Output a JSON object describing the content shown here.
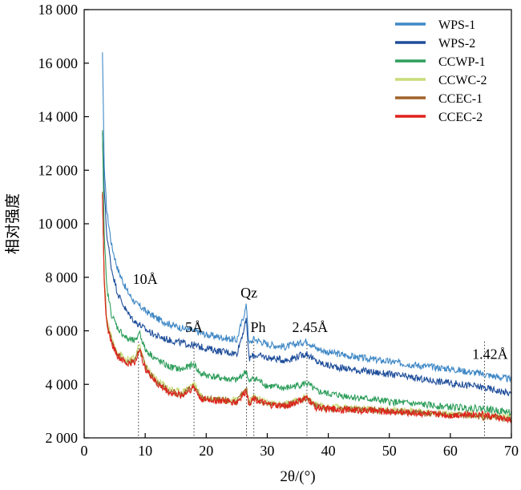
{
  "chart_data": {
    "type": "line",
    "title": "",
    "xlabel": "2θ/(°)",
    "ylabel": "相对强度",
    "xlim": [
      0,
      70
    ],
    "ylim": [
      2000,
      18000
    ],
    "x_ticks": [
      0,
      10,
      20,
      30,
      40,
      50,
      60,
      70
    ],
    "x_tick_labels": [
      "0",
      "10",
      "20",
      "30",
      "40",
      "50",
      "60",
      "70"
    ],
    "y_ticks": [
      2000,
      4000,
      6000,
      8000,
      10000,
      12000,
      14000,
      16000,
      18000
    ],
    "y_tick_labels": [
      "2 000",
      "4 000",
      "6 000",
      "8 000",
      "10 000",
      "12 000",
      "14 000",
      "16 000",
      "18 000"
    ],
    "grid": false,
    "legend_position": "top-right",
    "series": [
      {
        "name": "WPS-1",
        "color": "#3f88c5",
        "points": [
          [
            3.0,
            16400
          ],
          [
            3.3,
            12000
          ],
          [
            3.7,
            10500
          ],
          [
            4.5,
            9200
          ],
          [
            5.5,
            8300
          ],
          [
            7,
            7500
          ],
          [
            8.5,
            7000
          ],
          [
            9,
            6950
          ],
          [
            10,
            6750
          ],
          [
            12,
            6450
          ],
          [
            14,
            6250
          ],
          [
            16,
            6100
          ],
          [
            18,
            6000
          ],
          [
            20,
            5850
          ],
          [
            22,
            5780
          ],
          [
            25,
            5650
          ],
          [
            26.6,
            6950
          ],
          [
            27,
            5500
          ],
          [
            27.8,
            5700
          ],
          [
            30,
            5500
          ],
          [
            33,
            5400
          ],
          [
            36.5,
            5620
          ],
          [
            38,
            5350
          ],
          [
            40,
            5200
          ],
          [
            45,
            5000
          ],
          [
            50,
            4850
          ],
          [
            55,
            4700
          ],
          [
            60,
            4580
          ],
          [
            65,
            4400
          ],
          [
            70,
            4180
          ]
        ]
      },
      {
        "name": "WPS-2",
        "color": "#1f4e9a",
        "points": [
          [
            3.0,
            13400
          ],
          [
            3.3,
            11200
          ],
          [
            3.7,
            9600
          ],
          [
            4.5,
            8300
          ],
          [
            5.5,
            7400
          ],
          [
            7,
            6700
          ],
          [
            8.5,
            6300
          ],
          [
            9,
            6250
          ],
          [
            10,
            6050
          ],
          [
            12,
            5800
          ],
          [
            14,
            5650
          ],
          [
            16,
            5550
          ],
          [
            18,
            5450
          ],
          [
            20,
            5350
          ],
          [
            22,
            5250
          ],
          [
            25,
            5150
          ],
          [
            26.6,
            6400
          ],
          [
            27,
            4950
          ],
          [
            27.8,
            5100
          ],
          [
            30,
            5000
          ],
          [
            33,
            4900
          ],
          [
            36.5,
            5150
          ],
          [
            38,
            4850
          ],
          [
            40,
            4700
          ],
          [
            45,
            4520
          ],
          [
            50,
            4380
          ],
          [
            55,
            4200
          ],
          [
            60,
            4050
          ],
          [
            65,
            3900
          ],
          [
            70,
            3650
          ]
        ]
      },
      {
        "name": "CCWP-1",
        "color": "#2e9e5b",
        "points": [
          [
            3.0,
            13500
          ],
          [
            3.3,
            9500
          ],
          [
            3.7,
            7600
          ],
          [
            4.5,
            6600
          ],
          [
            5.5,
            6100
          ],
          [
            7,
            5700
          ],
          [
            8.5,
            5600
          ],
          [
            9,
            6000
          ],
          [
            10,
            5300
          ],
          [
            12,
            4900
          ],
          [
            14,
            4650
          ],
          [
            16,
            4550
          ],
          [
            18,
            4750
          ],
          [
            19,
            4400
          ],
          [
            20,
            4350
          ],
          [
            22,
            4250
          ],
          [
            25,
            4150
          ],
          [
            26.6,
            4500
          ],
          [
            27,
            4050
          ],
          [
            27.8,
            4250
          ],
          [
            30,
            3950
          ],
          [
            33,
            3850
          ],
          [
            36.5,
            4050
          ],
          [
            38,
            3750
          ],
          [
            40,
            3650
          ],
          [
            45,
            3500
          ],
          [
            50,
            3350
          ],
          [
            55,
            3250
          ],
          [
            60,
            3150
          ],
          [
            65,
            3100
          ],
          [
            70,
            2950
          ]
        ]
      },
      {
        "name": "CCWC-2",
        "color": "#c8dc7a",
        "points": [
          [
            3.0,
            11000
          ],
          [
            3.3,
            8000
          ],
          [
            3.7,
            6500
          ],
          [
            4.5,
            5700
          ],
          [
            5.5,
            5200
          ],
          [
            7,
            4900
          ],
          [
            8.5,
            5000
          ],
          [
            9,
            5550
          ],
          [
            10,
            4700
          ],
          [
            12,
            4150
          ],
          [
            14,
            3850
          ],
          [
            16,
            3700
          ],
          [
            18,
            4050
          ],
          [
            19,
            3600
          ],
          [
            20,
            3500
          ],
          [
            22,
            3450
          ],
          [
            25,
            3400
          ],
          [
            26.6,
            3850
          ],
          [
            27,
            3350
          ],
          [
            27.8,
            3550
          ],
          [
            30,
            3300
          ],
          [
            33,
            3250
          ],
          [
            36.5,
            3550
          ],
          [
            38,
            3200
          ],
          [
            40,
            3150
          ],
          [
            45,
            3100
          ],
          [
            50,
            3050
          ],
          [
            55,
            2980
          ],
          [
            60,
            2900
          ],
          [
            65,
            2850
          ],
          [
            70,
            2750
          ]
        ]
      },
      {
        "name": "CCEC-1",
        "color": "#a0622a",
        "points": [
          [
            3.0,
            11200
          ],
          [
            3.3,
            7800
          ],
          [
            3.7,
            6300
          ],
          [
            4.5,
            5600
          ],
          [
            5.5,
            5100
          ],
          [
            7,
            4800
          ],
          [
            8.5,
            4900
          ],
          [
            9,
            5400
          ],
          [
            10,
            4650
          ],
          [
            12,
            4050
          ],
          [
            14,
            3750
          ],
          [
            16,
            3600
          ],
          [
            18,
            3950
          ],
          [
            19,
            3500
          ],
          [
            20,
            3450
          ],
          [
            22,
            3400
          ],
          [
            25,
            3350
          ],
          [
            26.6,
            3800
          ],
          [
            27,
            3300
          ],
          [
            27.8,
            3500
          ],
          [
            30,
            3250
          ],
          [
            33,
            3200
          ],
          [
            36.5,
            3500
          ],
          [
            38,
            3150
          ],
          [
            40,
            3100
          ],
          [
            45,
            3050
          ],
          [
            50,
            3000
          ],
          [
            55,
            2930
          ],
          [
            60,
            2860
          ],
          [
            65,
            2800
          ],
          [
            70,
            2680
          ]
        ]
      },
      {
        "name": "CCEC-2",
        "color": "#e0221c",
        "points": [
          [
            3.0,
            11100
          ],
          [
            3.3,
            7700
          ],
          [
            3.7,
            6250
          ],
          [
            4.5,
            5550
          ],
          [
            5.5,
            5050
          ],
          [
            7,
            4750
          ],
          [
            8.5,
            4850
          ],
          [
            9,
            5350
          ],
          [
            10,
            4600
          ],
          [
            12,
            4000
          ],
          [
            14,
            3700
          ],
          [
            16,
            3580
          ],
          [
            18,
            3900
          ],
          [
            19,
            3480
          ],
          [
            20,
            3430
          ],
          [
            22,
            3380
          ],
          [
            25,
            3330
          ],
          [
            26.6,
            3750
          ],
          [
            27,
            3280
          ],
          [
            27.8,
            3480
          ],
          [
            30,
            3230
          ],
          [
            33,
            3180
          ],
          [
            36.5,
            3480
          ],
          [
            38,
            3130
          ],
          [
            40,
            3080
          ],
          [
            45,
            3030
          ],
          [
            50,
            2980
          ],
          [
            55,
            2920
          ],
          [
            60,
            2850
          ],
          [
            65,
            2900
          ],
          [
            70,
            2650
          ]
        ]
      }
    ],
    "reference_lines": [
      8.9,
      18.0,
      26.6,
      27.8,
      36.5,
      65.6
    ],
    "annotations": [
      {
        "text": "10Å",
        "x": 10,
        "y": 7750
      },
      {
        "text": "5Å",
        "x": 18,
        "y": 5950
      },
      {
        "text": "Qz",
        "x": 27,
        "y": 7250
      },
      {
        "text": "Ph",
        "x": 28.5,
        "y": 5950
      },
      {
        "text": "2.45Å",
        "x": 37,
        "y": 5950
      },
      {
        "text": "1.42Å",
        "x": 66.5,
        "y": 4950
      }
    ]
  }
}
